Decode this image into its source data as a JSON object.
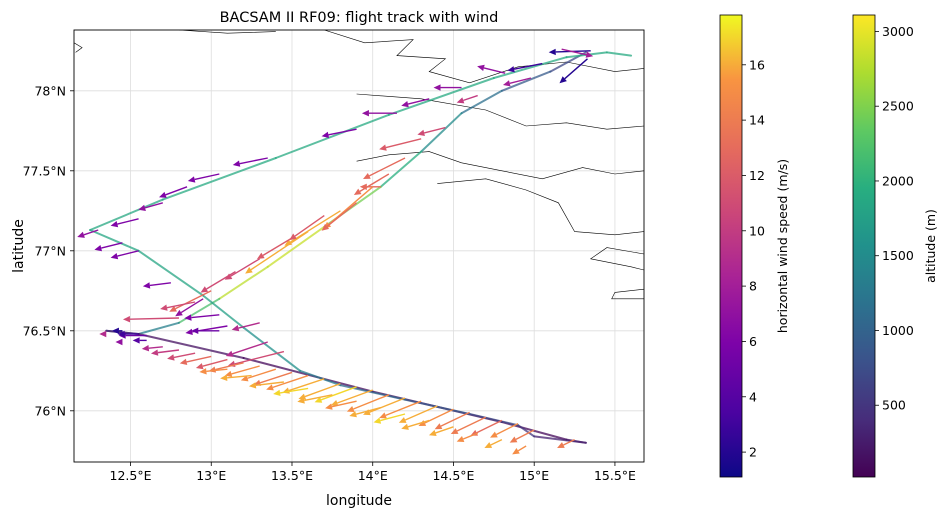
{
  "chart_data": {
    "type": "map",
    "title": "BACSAM II RF09: flight track with wind",
    "xlabel": "longitude",
    "ylabel": "latitude",
    "xlim": [
      12.15,
      15.68
    ],
    "ylim": [
      75.68,
      78.38
    ],
    "grid": true,
    "xticks": [
      {
        "value": 12.5,
        "label": "12.5°E"
      },
      {
        "value": 13.0,
        "label": "13°E"
      },
      {
        "value": 13.5,
        "label": "13.5°E"
      },
      {
        "value": 14.0,
        "label": "14°E"
      },
      {
        "value": 14.5,
        "label": "14.5°E"
      },
      {
        "value": 15.0,
        "label": "15°E"
      },
      {
        "value": 15.5,
        "label": "15.5°E"
      }
    ],
    "yticks": [
      {
        "value": 76.0,
        "label": "76°N"
      },
      {
        "value": 76.5,
        "label": "76.5°N"
      },
      {
        "value": 77.0,
        "label": "77°N"
      },
      {
        "value": 77.5,
        "label": "77.5°N"
      },
      {
        "value": 78.0,
        "label": "78°N"
      }
    ],
    "coastlines": [
      [
        [
          12.15,
          78.3
        ],
        [
          12.2,
          78.27
        ],
        [
          12.16,
          78.24
        ]
      ],
      [
        [
          12.8,
          78.38
        ],
        [
          13.1,
          78.36
        ],
        [
          13.4,
          78.37
        ]
      ],
      [
        [
          13.7,
          78.38
        ],
        [
          13.95,
          78.3
        ],
        [
          14.25,
          78.32
        ],
        [
          14.15,
          78.22
        ],
        [
          14.45,
          78.2
        ],
        [
          14.35,
          78.12
        ],
        [
          14.6,
          78.05
        ],
        [
          14.9,
          78.15
        ],
        [
          15.2,
          78.18
        ],
        [
          15.5,
          78.12
        ],
        [
          15.68,
          78.14
        ]
      ],
      [
        [
          13.9,
          77.98
        ],
        [
          14.3,
          77.95
        ],
        [
          14.7,
          77.88
        ],
        [
          14.95,
          77.78
        ],
        [
          15.2,
          77.8
        ],
        [
          15.45,
          77.76
        ],
        [
          15.68,
          77.78
        ]
      ],
      [
        [
          13.9,
          77.56
        ],
        [
          14.1,
          77.6
        ],
        [
          14.35,
          77.62
        ],
        [
          14.55,
          77.55
        ],
        [
          14.8,
          77.5
        ],
        [
          15.05,
          77.45
        ],
        [
          15.3,
          77.52
        ],
        [
          15.5,
          77.48
        ],
        [
          15.68,
          77.5
        ]
      ],
      [
        [
          14.4,
          77.42
        ],
        [
          14.7,
          77.45
        ],
        [
          14.95,
          77.38
        ],
        [
          15.15,
          77.3
        ],
        [
          15.25,
          77.12
        ],
        [
          15.5,
          77.1
        ],
        [
          15.68,
          77.12
        ]
      ],
      [
        [
          15.68,
          76.98
        ],
        [
          15.45,
          77.02
        ],
        [
          15.35,
          76.95
        ],
        [
          15.6,
          76.9
        ],
        [
          15.68,
          76.88
        ]
      ],
      [
        [
          15.68,
          76.76
        ],
        [
          15.5,
          76.74
        ],
        [
          15.48,
          76.7
        ],
        [
          15.68,
          76.7
        ]
      ]
    ],
    "track": [
      {
        "lon": 15.32,
        "lat": 78.24,
        "alt": 600
      },
      {
        "lon": 15.1,
        "lat": 78.12,
        "alt": 800
      },
      {
        "lon": 14.8,
        "lat": 78.0,
        "alt": 1000
      },
      {
        "lon": 14.55,
        "lat": 77.86,
        "alt": 1300
      },
      {
        "lon": 14.3,
        "lat": 77.62,
        "alt": 1700
      },
      {
        "lon": 14.05,
        "lat": 77.4,
        "alt": 2200
      },
      {
        "lon": 13.7,
        "lat": 77.15,
        "alt": 2700
      },
      {
        "lon": 13.35,
        "lat": 76.9,
        "alt": 3000
      },
      {
        "lon": 13.05,
        "lat": 76.7,
        "alt": 2600
      },
      {
        "lon": 12.8,
        "lat": 76.55,
        "alt": 1800
      },
      {
        "lon": 12.55,
        "lat": 76.48,
        "alt": 900
      },
      {
        "lon": 12.35,
        "lat": 76.5,
        "alt": 400
      },
      {
        "lon": 12.55,
        "lat": 76.48,
        "alt": 200
      },
      {
        "lon": 13.2,
        "lat": 76.33,
        "alt": 100
      },
      {
        "lon": 14.0,
        "lat": 76.12,
        "alt": 60
      },
      {
        "lon": 14.8,
        "lat": 75.93,
        "alt": 60
      },
      {
        "lon": 15.2,
        "lat": 75.82,
        "alt": 80
      },
      {
        "lon": 15.32,
        "lat": 75.8,
        "alt": 200
      },
      {
        "lon": 15.0,
        "lat": 75.84,
        "alt": 400
      },
      {
        "lon": 14.9,
        "lat": 75.91,
        "alt": 600
      },
      {
        "lon": 14.6,
        "lat": 75.98,
        "alt": 800
      },
      {
        "lon": 14.2,
        "lat": 76.07,
        "alt": 1000
      },
      {
        "lon": 13.8,
        "lat": 76.16,
        "alt": 1150
      },
      {
        "lon": 13.55,
        "lat": 76.25,
        "alt": 1400
      },
      {
        "lon": 13.2,
        "lat": 76.52,
        "alt": 1700
      },
      {
        "lon": 12.95,
        "lat": 76.72,
        "alt": 1800
      },
      {
        "lon": 12.55,
        "lat": 77.0,
        "alt": 1850
      },
      {
        "lon": 12.25,
        "lat": 77.13,
        "alt": 1850
      },
      {
        "lon": 12.7,
        "lat": 77.32,
        "alt": 1900
      },
      {
        "lon": 13.4,
        "lat": 77.58,
        "alt": 1900
      },
      {
        "lon": 14.1,
        "lat": 77.85,
        "alt": 1900
      },
      {
        "lon": 14.75,
        "lat": 78.08,
        "alt": 1900
      },
      {
        "lon": 15.2,
        "lat": 78.21,
        "alt": 1900
      },
      {
        "lon": 15.45,
        "lat": 78.24,
        "alt": 1900
      },
      {
        "lon": 15.6,
        "lat": 78.22,
        "alt": 1900
      }
    ],
    "wind_vectors": [
      {
        "lon": 15.35,
        "lat": 78.25,
        "u": -0.6,
        "v": -0.02,
        "speed": 2
      },
      {
        "lon": 15.33,
        "lat": 78.2,
        "u": -0.4,
        "v": -0.35,
        "speed": 2
      },
      {
        "lon": 15.17,
        "lat": 78.26,
        "u": 0.45,
        "v": -0.1,
        "speed": 8
      },
      {
        "lon": 15.05,
        "lat": 78.17,
        "u": -0.5,
        "v": -0.1,
        "speed": 3
      },
      {
        "lon": 14.98,
        "lat": 78.08,
        "u": -0.4,
        "v": -0.1,
        "speed": 8
      },
      {
        "lon": 14.82,
        "lat": 78.11,
        "u": -0.4,
        "v": 0.1,
        "speed": 7
      },
      {
        "lon": 14.65,
        "lat": 77.97,
        "u": -0.3,
        "v": -0.1,
        "speed": 10
      },
      {
        "lon": 14.55,
        "lat": 78.02,
        "u": -0.4,
        "v": 0.0,
        "speed": 7
      },
      {
        "lon": 14.45,
        "lat": 77.77,
        "u": -0.4,
        "v": -0.1,
        "speed": 11
      },
      {
        "lon": 14.35,
        "lat": 77.95,
        "u": -0.4,
        "v": -0.1,
        "speed": 7
      },
      {
        "lon": 14.3,
        "lat": 77.7,
        "u": -0.6,
        "v": -0.15,
        "speed": 12
      },
      {
        "lon": 14.2,
        "lat": 77.58,
        "u": -0.6,
        "v": -0.3,
        "speed": 13
      },
      {
        "lon": 14.15,
        "lat": 77.86,
        "u": -0.5,
        "v": 0.0,
        "speed": 7
      },
      {
        "lon": 14.1,
        "lat": 77.48,
        "u": -0.5,
        "v": -0.3,
        "speed": 13
      },
      {
        "lon": 14.05,
        "lat": 77.4,
        "u": -0.3,
        "v": 0.0,
        "speed": 13
      },
      {
        "lon": 14.0,
        "lat": 77.4,
        "u": -0.7,
        "v": -0.6,
        "speed": 15
      },
      {
        "lon": 13.9,
        "lat": 77.76,
        "u": -0.5,
        "v": -0.1,
        "speed": 6
      },
      {
        "lon": 13.9,
        "lat": 77.3,
        "u": -0.5,
        "v": -0.4,
        "speed": 13
      },
      {
        "lon": 13.8,
        "lat": 77.25,
        "u": -0.8,
        "v": -0.5,
        "speed": 16
      },
      {
        "lon": 13.7,
        "lat": 77.22,
        "u": -0.5,
        "v": -0.35,
        "speed": 12
      },
      {
        "lon": 13.6,
        "lat": 77.12,
        "u": -0.9,
        "v": -0.6,
        "speed": 16
      },
      {
        "lon": 13.5,
        "lat": 77.08,
        "u": -0.5,
        "v": -0.3,
        "speed": 12
      },
      {
        "lon": 13.35,
        "lat": 77.58,
        "u": -0.5,
        "v": -0.1,
        "speed": 6
      },
      {
        "lon": 13.3,
        "lat": 76.95,
        "u": -0.5,
        "v": -0.3,
        "speed": 11
      },
      {
        "lon": 13.15,
        "lat": 76.87,
        "u": -0.5,
        "v": -0.3,
        "speed": 11
      },
      {
        "lon": 13.05,
        "lat": 77.48,
        "u": -0.45,
        "v": -0.1,
        "speed": 6
      },
      {
        "lon": 13.0,
        "lat": 76.75,
        "u": -0.6,
        "v": -0.3,
        "speed": 13
      },
      {
        "lon": 12.9,
        "lat": 76.68,
        "u": -0.5,
        "v": -0.1,
        "speed": 11
      },
      {
        "lon": 13.05,
        "lat": 76.6,
        "u": -0.5,
        "v": -0.05,
        "speed": 6
      },
      {
        "lon": 12.95,
        "lat": 76.7,
        "u": -0.4,
        "v": -0.25,
        "speed": 7
      },
      {
        "lon": 12.85,
        "lat": 77.4,
        "u": -0.4,
        "v": -0.15,
        "speed": 6
      },
      {
        "lon": 12.75,
        "lat": 76.8,
        "u": -0.4,
        "v": -0.05,
        "speed": 6
      },
      {
        "lon": 12.7,
        "lat": 77.3,
        "u": -0.35,
        "v": -0.1,
        "speed": 7
      },
      {
        "lon": 12.55,
        "lat": 77.2,
        "u": -0.4,
        "v": -0.1,
        "speed": 6
      },
      {
        "lon": 12.55,
        "lat": 77.0,
        "u": -0.4,
        "v": -0.1,
        "speed": 6
      },
      {
        "lon": 12.45,
        "lat": 77.05,
        "u": -0.4,
        "v": -0.1,
        "speed": 6
      },
      {
        "lon": 12.3,
        "lat": 77.13,
        "u": -0.3,
        "v": -0.1,
        "speed": 7
      },
      {
        "lon": 12.8,
        "lat": 76.58,
        "u": -0.8,
        "v": -0.02,
        "speed": 11
      },
      {
        "lon": 13.1,
        "lat": 76.53,
        "u": -0.6,
        "v": -0.1,
        "speed": 6
      },
      {
        "lon": 13.05,
        "lat": 76.5,
        "u": -0.4,
        "v": 0.0,
        "speed": 5
      },
      {
        "lon": 13.3,
        "lat": 76.55,
        "u": -0.4,
        "v": -0.1,
        "speed": 9
      },
      {
        "lon": 13.45,
        "lat": 76.37,
        "u": -0.8,
        "v": -0.2,
        "speed": 11
      },
      {
        "lon": 13.35,
        "lat": 76.43,
        "u": -0.6,
        "v": -0.2,
        "speed": 9
      },
      {
        "lon": 12.6,
        "lat": 76.47,
        "u": -0.4,
        "v": 0.0,
        "speed": 5
      },
      {
        "lon": 12.55,
        "lat": 76.48,
        "u": -0.3,
        "v": 0.0,
        "speed": 3
      },
      {
        "lon": 12.45,
        "lat": 76.5,
        "u": -0.15,
        "v": 0.0,
        "speed": 2
      },
      {
        "lon": 12.35,
        "lat": 76.48,
        "u": -0.1,
        "v": 0.0,
        "speed": 9
      },
      {
        "lon": 12.45,
        "lat": 76.43,
        "u": -0.1,
        "v": 0.0,
        "speed": 7
      },
      {
        "lon": 12.6,
        "lat": 76.44,
        "u": -0.2,
        "v": 0.0,
        "speed": 4
      },
      {
        "lon": 12.7,
        "lat": 76.4,
        "u": -0.3,
        "v": -0.03,
        "speed": 9
      },
      {
        "lon": 12.8,
        "lat": 76.38,
        "u": -0.4,
        "v": -0.05,
        "speed": 10
      },
      {
        "lon": 12.9,
        "lat": 76.36,
        "u": -0.4,
        "v": -0.08,
        "speed": 11
      },
      {
        "lon": 13.0,
        "lat": 76.34,
        "u": -0.45,
        "v": -0.1,
        "speed": 13
      },
      {
        "lon": 13.1,
        "lat": 76.32,
        "u": -0.45,
        "v": -0.12,
        "speed": 12
      },
      {
        "lon": 13.2,
        "lat": 76.3,
        "u": -0.5,
        "v": -0.12,
        "speed": 14
      },
      {
        "lon": 13.3,
        "lat": 76.28,
        "u": -0.5,
        "v": -0.14,
        "speed": 15
      },
      {
        "lon": 13.4,
        "lat": 76.26,
        "u": -0.5,
        "v": -0.16,
        "speed": 15
      },
      {
        "lon": 13.5,
        "lat": 76.24,
        "u": -0.55,
        "v": -0.18,
        "speed": 14
      },
      {
        "lon": 13.6,
        "lat": 76.22,
        "u": -0.6,
        "v": -0.2,
        "speed": 15
      },
      {
        "lon": 13.7,
        "lat": 76.2,
        "u": -0.6,
        "v": -0.2,
        "speed": 16
      },
      {
        "lon": 13.8,
        "lat": 76.17,
        "u": -0.6,
        "v": -0.22,
        "speed": 16
      },
      {
        "lon": 13.9,
        "lat": 76.15,
        "u": -0.6,
        "v": -0.22,
        "speed": 17
      },
      {
        "lon": 14.0,
        "lat": 76.13,
        "u": -0.6,
        "v": -0.22,
        "speed": 16
      },
      {
        "lon": 14.1,
        "lat": 76.1,
        "u": -0.6,
        "v": -0.24,
        "speed": 15
      },
      {
        "lon": 14.2,
        "lat": 76.08,
        "u": -0.6,
        "v": -0.24,
        "speed": 16
      },
      {
        "lon": 14.3,
        "lat": 76.06,
        "u": -0.6,
        "v": -0.24,
        "speed": 15
      },
      {
        "lon": 14.4,
        "lat": 76.03,
        "u": -0.55,
        "v": -0.24,
        "speed": 16
      },
      {
        "lon": 14.5,
        "lat": 76.01,
        "u": -0.5,
        "v": -0.24,
        "speed": 15
      },
      {
        "lon": 14.6,
        "lat": 75.99,
        "u": -0.5,
        "v": -0.24,
        "speed": 14
      },
      {
        "lon": 14.7,
        "lat": 75.96,
        "u": -0.5,
        "v": -0.24,
        "speed": 14
      },
      {
        "lon": 14.8,
        "lat": 75.94,
        "u": -0.45,
        "v": -0.22,
        "speed": 13
      },
      {
        "lon": 14.9,
        "lat": 75.92,
        "u": -0.4,
        "v": -0.2,
        "speed": 15
      },
      {
        "lon": 15.0,
        "lat": 75.88,
        "u": -0.35,
        "v": -0.18,
        "speed": 14
      },
      {
        "lon": 15.25,
        "lat": 75.82,
        "u": -0.25,
        "v": -0.12,
        "speed": 14
      },
      {
        "lon": 13.1,
        "lat": 76.26,
        "u": -0.4,
        "v": -0.04,
        "speed": 15
      },
      {
        "lon": 13.25,
        "lat": 76.22,
        "u": -0.45,
        "v": -0.04,
        "speed": 16
      },
      {
        "lon": 13.45,
        "lat": 76.18,
        "u": -0.5,
        "v": -0.06,
        "speed": 16
      },
      {
        "lon": 13.6,
        "lat": 76.14,
        "u": -0.5,
        "v": -0.08,
        "speed": 17
      },
      {
        "lon": 13.75,
        "lat": 76.1,
        "u": -0.5,
        "v": -0.1,
        "speed": 16
      },
      {
        "lon": 13.9,
        "lat": 76.06,
        "u": -0.45,
        "v": -0.1,
        "speed": 15
      },
      {
        "lon": 14.05,
        "lat": 76.02,
        "u": -0.45,
        "v": -0.12,
        "speed": 16
      },
      {
        "lon": 14.2,
        "lat": 75.98,
        "u": -0.45,
        "v": -0.12,
        "speed": 17
      },
      {
        "lon": 14.35,
        "lat": 75.94,
        "u": -0.4,
        "v": -0.12,
        "speed": 16
      },
      {
        "lon": 14.5,
        "lat": 75.9,
        "u": -0.35,
        "v": -0.12,
        "speed": 16
      },
      {
        "lon": 14.65,
        "lat": 75.86,
        "u": -0.3,
        "v": -0.12,
        "speed": 15
      },
      {
        "lon": 14.8,
        "lat": 75.82,
        "u": -0.25,
        "v": -0.12,
        "speed": 16
      },
      {
        "lon": 14.95,
        "lat": 75.78,
        "u": -0.2,
        "v": -0.12,
        "speed": 15
      }
    ],
    "colorbars": [
      {
        "label": "horizontal wind speed (m/s)",
        "colormap": "plasma",
        "range": [
          1.1,
          17.8
        ],
        "ticks": [
          {
            "value": 2,
            "label": "2"
          },
          {
            "value": 4,
            "label": "4"
          },
          {
            "value": 6,
            "label": "6"
          },
          {
            "value": 8,
            "label": "8"
          },
          {
            "value": 10,
            "label": "10"
          },
          {
            "value": 12,
            "label": "12"
          },
          {
            "value": 14,
            "label": "14"
          },
          {
            "value": 16,
            "label": "16"
          }
        ]
      },
      {
        "label": "altitude (m)",
        "colormap": "viridis",
        "range": [
          20,
          3110
        ],
        "ticks": [
          {
            "value": 500,
            "label": "500"
          },
          {
            "value": 1000,
            "label": "1000"
          },
          {
            "value": 1500,
            "label": "1500"
          },
          {
            "value": 2000,
            "label": "2000"
          },
          {
            "value": 2500,
            "label": "2500"
          },
          {
            "value": 3000,
            "label": "3000"
          }
        ]
      }
    ]
  }
}
